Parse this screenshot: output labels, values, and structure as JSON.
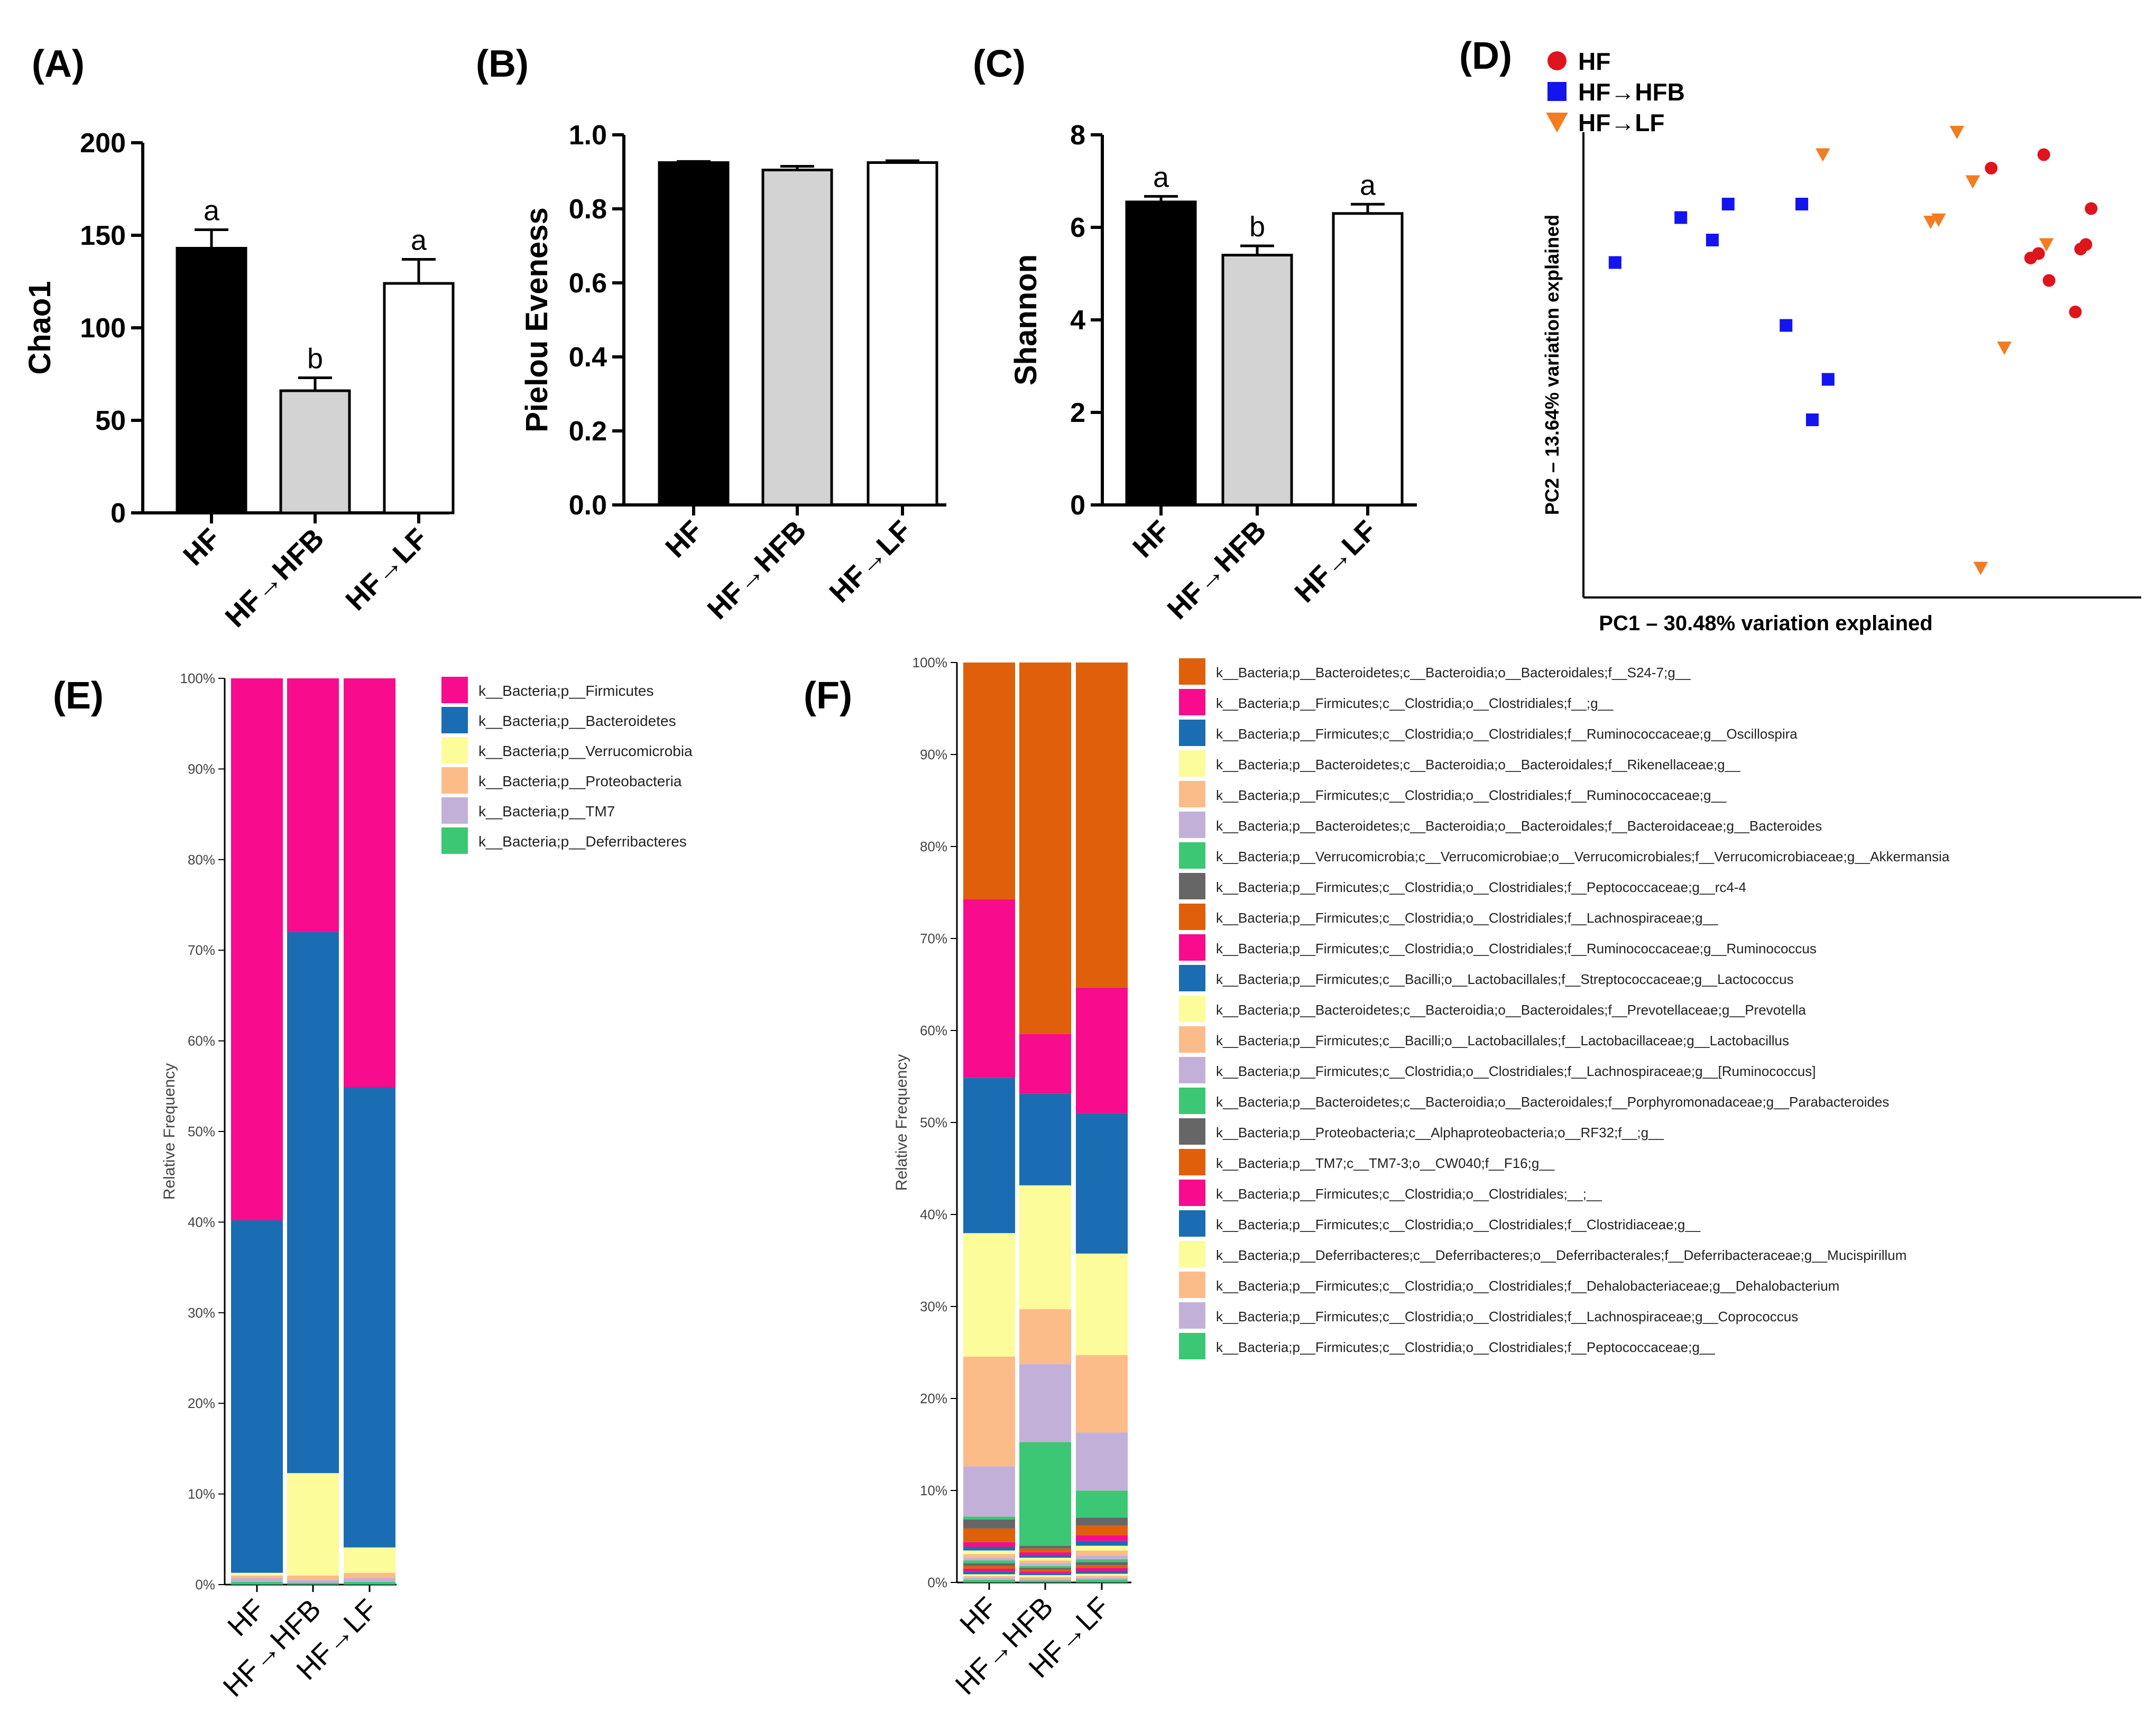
{
  "figure": {
    "panel_labels": [
      "(A)",
      "(B)",
      "(C)",
      "(D)",
      "(E)",
      "(F)"
    ]
  },
  "colors": {
    "hf_bar": "#000000",
    "hfb_bar": "#d3d3d3",
    "lf_bar": "#ffffff",
    "pcoa_hf": "#e0141c",
    "pcoa_hfb": "#1414ef",
    "pcoa_lf": "#f47c20"
  },
  "chart_data": [
    {
      "id": "A",
      "type": "bar",
      "ylabel": "Chao1",
      "xlabel": "",
      "categories": [
        "HF",
        "HF→HFB",
        "HF→LF"
      ],
      "values": [
        143,
        66,
        124
      ],
      "errors": [
        10,
        7,
        13
      ],
      "letters": [
        "a",
        "b",
        "a"
      ],
      "ylim": [
        0,
        200
      ],
      "yticks": [
        "0",
        "50",
        "100",
        "150",
        "200"
      ],
      "ytick_values": [
        0,
        50,
        100,
        150,
        200
      ]
    },
    {
      "id": "B",
      "type": "bar",
      "ylabel": "Pielou Eveness",
      "xlabel": "",
      "categories": [
        "HF",
        "HF→HFB",
        "HF→LF"
      ],
      "values": [
        0.925,
        0.905,
        0.925
      ],
      "errors": [
        0.003,
        0.01,
        0.005
      ],
      "letters": [
        "",
        "",
        ""
      ],
      "ylim": [
        0,
        1.0
      ],
      "yticks": [
        "0.0",
        "0.2",
        "0.4",
        "0.6",
        "0.8",
        "1.0"
      ],
      "ytick_values": [
        0,
        0.2,
        0.4,
        0.6,
        0.8,
        1.0
      ]
    },
    {
      "id": "C",
      "type": "bar",
      "ylabel": "Shannon",
      "xlabel": "",
      "categories": [
        "HF",
        "HF→HFB",
        "HF→LF"
      ],
      "values": [
        6.55,
        5.4,
        6.3
      ],
      "errors": [
        0.12,
        0.2,
        0.2
      ],
      "letters": [
        "a",
        "b",
        "a"
      ],
      "ylim": [
        0,
        8
      ],
      "yticks": [
        "0",
        "2",
        "4",
        "6",
        "8"
      ],
      "ytick_values": [
        0,
        2,
        4,
        6,
        8
      ]
    },
    {
      "id": "D",
      "type": "scatter",
      "xlabel": "PC1 – 30.48% variation explained",
      "ylabel": "PC2 – 13.64% variation explained",
      "legend": [
        "HF",
        "HF→HFB",
        "HF→LF"
      ],
      "xlim": [
        0,
        100
      ],
      "ylim": [
        0,
        100
      ],
      "series": [
        {
          "name": "HF",
          "x": [
            85,
            75,
            94,
            82.5,
            92,
            84,
            86,
            91,
            93
          ],
          "y": [
            95,
            92,
            83,
            72,
            74,
            73,
            67,
            60,
            75
          ]
        },
        {
          "name": "HF→HFB",
          "x": [
            3.5,
            16,
            22,
            25,
            39,
            36,
            44,
            41
          ],
          "y": [
            71,
            81,
            76,
            84,
            84,
            57,
            45,
            36
          ]
        },
        {
          "name": "HF→LF",
          "x": [
            68.5,
            71.5,
            63.5,
            65,
            85.5,
            77.5,
            43,
            73
          ],
          "y": [
            100,
            89,
            80,
            80.5,
            75,
            52,
            95,
            3
          ]
        }
      ]
    },
    {
      "id": "E",
      "type": "stacked_bar",
      "ylabel": "Relative Frequency",
      "categories": [
        "HF",
        "HF→HFB",
        "HF→LF"
      ],
      "yticks": [
        "0%",
        "10%",
        "20%",
        "30%",
        "40%",
        "50%",
        "60%",
        "70%",
        "80%",
        "90%",
        "100%"
      ],
      "series": [
        {
          "name": "k__Bacteria;p__Deferribacteres",
          "color": "#3cc774",
          "values": [
            0.3,
            0.2,
            0.3
          ]
        },
        {
          "name": "k__Bacteria;p__TM7",
          "color": "#c3b0d8",
          "values": [
            0.4,
            0.3,
            0.4
          ]
        },
        {
          "name": "k__Bacteria;p__Proteobacteria",
          "color": "#fbbc8a",
          "values": [
            0.3,
            0.5,
            0.6
          ]
        },
        {
          "name": "k__Bacteria;p__Verrucomicrobia",
          "color": "#fcfc9a",
          "values": [
            0.3,
            11.3,
            2.8
          ]
        },
        {
          "name": "k__Bacteria;p__Bacteroidetes",
          "color": "#1a6db2",
          "values": [
            38.9,
            59.7,
            50.8
          ]
        },
        {
          "name": "k__Bacteria;p__Firmicutes",
          "color": "#f80b8c",
          "values": [
            59.8,
            28.0,
            45.1
          ]
        }
      ],
      "legend_order": [
        "k__Bacteria;p__Firmicutes",
        "k__Bacteria;p__Bacteroidetes",
        "k__Bacteria;p__Verrucomicrobia",
        "k__Bacteria;p__Proteobacteria",
        "k__Bacteria;p__TM7",
        "k__Bacteria;p__Deferribacteres"
      ]
    },
    {
      "id": "F",
      "type": "stacked_bar",
      "ylabel": "Relative Frequency",
      "categories": [
        "HF",
        "HF→HFB",
        "HF→LF"
      ],
      "yticks": [
        "0%",
        "10%",
        "20%",
        "30%",
        "40%",
        "50%",
        "60%",
        "70%",
        "80%",
        "90%",
        "100%"
      ],
      "series": [
        {
          "name": "k__Bacteria;p__Firmicutes;c__Clostridia;o__Clostridiales;f__Peptococcaceae;g__",
          "color": "#3cc774",
          "values": [
            0.3,
            0.2,
            0.3
          ]
        },
        {
          "name": "k__Bacteria;p__Firmicutes;c__Clostridia;o__Clostridiales;f__Lachnospiraceae;g__Coprococcus",
          "color": "#c3b0d8",
          "values": [
            0.2,
            0.2,
            0.2
          ]
        },
        {
          "name": "k__Bacteria;p__Firmicutes;c__Clostridia;o__Clostridiales;f__Dehalobacteriaceae;g__Dehalobacterium",
          "color": "#fbbc8a",
          "values": [
            0.2,
            0.2,
            0.2
          ]
        },
        {
          "name": "k__Bacteria;p__Deferribacteres;c__Deferribacteres;o__Deferribacterales;f__Deferribacteraceae;g__Mucispirillum",
          "color": "#fcfc9a",
          "values": [
            0.2,
            0.2,
            0.2
          ]
        },
        {
          "name": "k__Bacteria;p__Firmicutes;c__Clostridia;o__Clostridiales;f__Clostridiaceae;g__",
          "color": "#1a6db2",
          "values": [
            0.3,
            0.2,
            0.3
          ]
        },
        {
          "name": "k__Bacteria;p__Firmicutes;c__Clostridia;o__Clostridiales;__;__",
          "color": "#f80b8c",
          "values": [
            0.3,
            0.2,
            0.3
          ]
        },
        {
          "name": "k__Bacteria;p__TM7;c__TM7-3;o__CW040;f__F16;g__",
          "color": "#e05f0a",
          "values": [
            0.3,
            0.2,
            0.3
          ]
        },
        {
          "name": "k__Bacteria;p__Proteobacteria;c__Alphaproteobacteria;o__RF32;f__;g__",
          "color": "#666666",
          "values": [
            0.3,
            0.2,
            0.3
          ]
        },
        {
          "name": "k__Bacteria;p__Bacteroidetes;c__Bacteroidia;o__Bacteroidales;f__Porphyromonadaceae;g__Parabacteroides",
          "color": "#3cc774",
          "values": [
            0.3,
            0.2,
            0.3
          ]
        },
        {
          "name": "k__Bacteria;p__Firmicutes;c__Clostridia;o__Clostridiales;f__Lachnospiraceae;g__[Ruminococcus]",
          "color": "#c3b0d8",
          "values": [
            0.3,
            0.3,
            0.4
          ]
        },
        {
          "name": "k__Bacteria;p__Firmicutes;c__Bacilli;o__Lactobacillales;f__Lactobacillaceae;g__Lactobacillus",
          "color": "#fbbc8a",
          "values": [
            0.4,
            0.3,
            0.5
          ]
        },
        {
          "name": "k__Bacteria;p__Bacteroidetes;c__Bacteroidia;o__Bacteroidales;f__Prevotellaceae;g__Prevotella",
          "color": "#fcfc9a",
          "values": [
            0.4,
            0.3,
            0.5
          ]
        },
        {
          "name": "k__Bacteria;p__Firmicutes;c__Bacilli;o__Lactobacillales;f__Streptococcaceae;g__Lactococcus",
          "color": "#1a6db2",
          "values": [
            0.4,
            0.3,
            0.5
          ]
        },
        {
          "name": "k__Bacteria;p__Firmicutes;c__Clostridia;o__Clostridiales;f__Ruminococcaceae;g__Ruminococcus",
          "color": "#f80b8c",
          "values": [
            0.5,
            0.3,
            0.6
          ]
        },
        {
          "name": "k__Bacteria;p__Firmicutes;c__Clostridia;o__Clostridiales;f__Lachnospiraceae;g__",
          "color": "#e05f0a",
          "values": [
            1.5,
            0.4,
            1.0
          ]
        },
        {
          "name": "k__Bacteria;p__Firmicutes;c__Clostridia;o__Clostridiales;f__Peptococcaceae;g__rc4-4",
          "color": "#666666",
          "values": [
            1.0,
            0.3,
            0.8
          ]
        },
        {
          "name": "k__Bacteria;p__Verrucomicrobia;c__Verrucomicrobiae;o__Verrucomicrobiales;f__Verrucomicrobiaceae;g__Akkermansia",
          "color": "#3cc774",
          "values": [
            0.3,
            11.3,
            2.8
          ]
        },
        {
          "name": "k__Bacteria;p__Bacteroidetes;c__Bacteroidia;o__Bacteroidales;f__Bacteroidaceae;g__Bacteroides",
          "color": "#c3b0d8",
          "values": [
            5.5,
            8.5,
            6.0
          ]
        },
        {
          "name": "k__Bacteria;p__Firmicutes;c__Clostridia;o__Clostridiales;f__Ruminococcaceae;g__",
          "color": "#fbbc8a",
          "values": [
            12.0,
            6.0,
            8.0
          ]
        },
        {
          "name": "k__Bacteria;p__Bacteroidetes;c__Bacteroidia;o__Bacteroidales;f__Rikenellaceae;g__",
          "color": "#fcfc9a",
          "values": [
            13.5,
            13.5,
            10.5
          ]
        },
        {
          "name": "k__Bacteria;p__Firmicutes;c__Clostridia;o__Clostridiales;f__Ruminococcaceae;g__Oscillospira",
          "color": "#1a6db2",
          "values": [
            17.0,
            10.0,
            14.5
          ]
        },
        {
          "name": "k__Bacteria;p__Firmicutes;c__Clostridia;o__Clostridiales;f__;g__",
          "color": "#f80b8c",
          "values": [
            19.5,
            6.5,
            13.0
          ]
        },
        {
          "name": "k__Bacteria;p__Bacteroidetes;c__Bacteroidia;o__Bacteroidales;f__S24-7;g__",
          "color": "#e05f0a",
          "values": [
            25.9,
            40.5,
            33.6
          ]
        }
      ],
      "legend_order": [
        "k__Bacteria;p__Bacteroidetes;c__Bacteroidia;o__Bacteroidales;f__S24-7;g__",
        "k__Bacteria;p__Firmicutes;c__Clostridia;o__Clostridiales;f__;g__",
        "k__Bacteria;p__Firmicutes;c__Clostridia;o__Clostridiales;f__Ruminococcaceae;g__Oscillospira",
        "k__Bacteria;p__Bacteroidetes;c__Bacteroidia;o__Bacteroidales;f__Rikenellaceae;g__",
        "k__Bacteria;p__Firmicutes;c__Clostridia;o__Clostridiales;f__Ruminococcaceae;g__",
        "k__Bacteria;p__Bacteroidetes;c__Bacteroidia;o__Bacteroidales;f__Bacteroidaceae;g__Bacteroides",
        "k__Bacteria;p__Verrucomicrobia;c__Verrucomicrobiae;o__Verrucomicrobiales;f__Verrucomicrobiaceae;g__Akkermansia",
        "k__Bacteria;p__Firmicutes;c__Clostridia;o__Clostridiales;f__Peptococcaceae;g__rc4-4",
        "k__Bacteria;p__Firmicutes;c__Clostridia;o__Clostridiales;f__Lachnospiraceae;g__",
        "k__Bacteria;p__Firmicutes;c__Clostridia;o__Clostridiales;f__Ruminococcaceae;g__Ruminococcus",
        "k__Bacteria;p__Firmicutes;c__Bacilli;o__Lactobacillales;f__Streptococcaceae;g__Lactococcus",
        "k__Bacteria;p__Bacteroidetes;c__Bacteroidia;o__Bacteroidales;f__Prevotellaceae;g__Prevotella",
        "k__Bacteria;p__Firmicutes;c__Bacilli;o__Lactobacillales;f__Lactobacillaceae;g__Lactobacillus",
        "k__Bacteria;p__Firmicutes;c__Clostridia;o__Clostridiales;f__Lachnospiraceae;g__[Ruminococcus]",
        "k__Bacteria;p__Bacteroidetes;c__Bacteroidia;o__Bacteroidales;f__Porphyromonadaceae;g__Parabacteroides",
        "k__Bacteria;p__Proteobacteria;c__Alphaproteobacteria;o__RF32;f__;g__",
        "k__Bacteria;p__TM7;c__TM7-3;o__CW040;f__F16;g__",
        "k__Bacteria;p__Firmicutes;c__Clostridia;o__Clostridiales;__;__",
        "k__Bacteria;p__Firmicutes;c__Clostridia;o__Clostridiales;f__Clostridiaceae;g__",
        "k__Bacteria;p__Deferribacteres;c__Deferribacteres;o__Deferribacterales;f__Deferribacteraceae;g__Mucispirillum",
        "k__Bacteria;p__Firmicutes;c__Clostridia;o__Clostridiales;f__Dehalobacteriaceae;g__Dehalobacterium",
        "k__Bacteria;p__Firmicutes;c__Clostridia;o__Clostridiales;f__Lachnospiraceae;g__Coprococcus",
        "k__Bacteria;p__Firmicutes;c__Clostridia;o__Clostridiales;f__Peptococcaceae;g__"
      ]
    }
  ]
}
